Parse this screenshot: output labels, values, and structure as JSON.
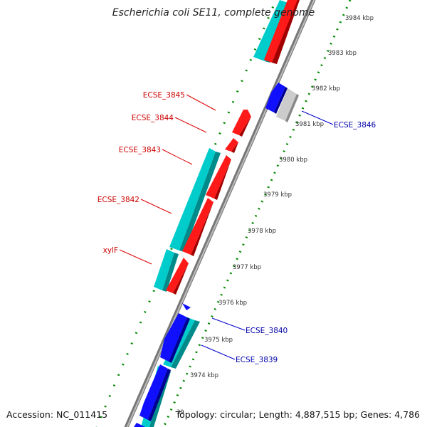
{
  "title": "Escherichia coli SE11, complete genome",
  "accession": "Accession: NC_011415",
  "summary": "Topology: circular; Length: 4,887,515 bp; Genes: 4,786",
  "kbp_ticks": [
    "3984 kbp",
    "3983 kbp",
    "3982 kbp",
    "3981 kbp",
    "3980 kbp",
    "3979 kbp",
    "3978 kbp",
    "3977 kbp",
    "3976 kbp",
    "3975 kbp",
    "3974 kbp"
  ],
  "partial_tick": "39",
  "gene_labels_forward": [
    "ECSE_3845",
    "ECSE_3844",
    "ECSE_3843",
    "ECSE_3842",
    "xylF"
  ],
  "gene_labels_reverse": [
    "ECSE_3846",
    "ECSE_3840",
    "ECSE_3839"
  ],
  "colors": {
    "forward_cds": "#ff0000",
    "forward_cds_shade": "#a00000",
    "reverse_cds": "#0000ff",
    "reverse_cds_shade": "#000090",
    "cog_forward": "#00d0d0",
    "cog_reverse": "#00d0d0",
    "unassigned": "#c8c8c8",
    "backbone": "#999999",
    "gc_ticks": "#008800",
    "forward_label": "#cc0000",
    "reverse_label": "#0000aa"
  }
}
